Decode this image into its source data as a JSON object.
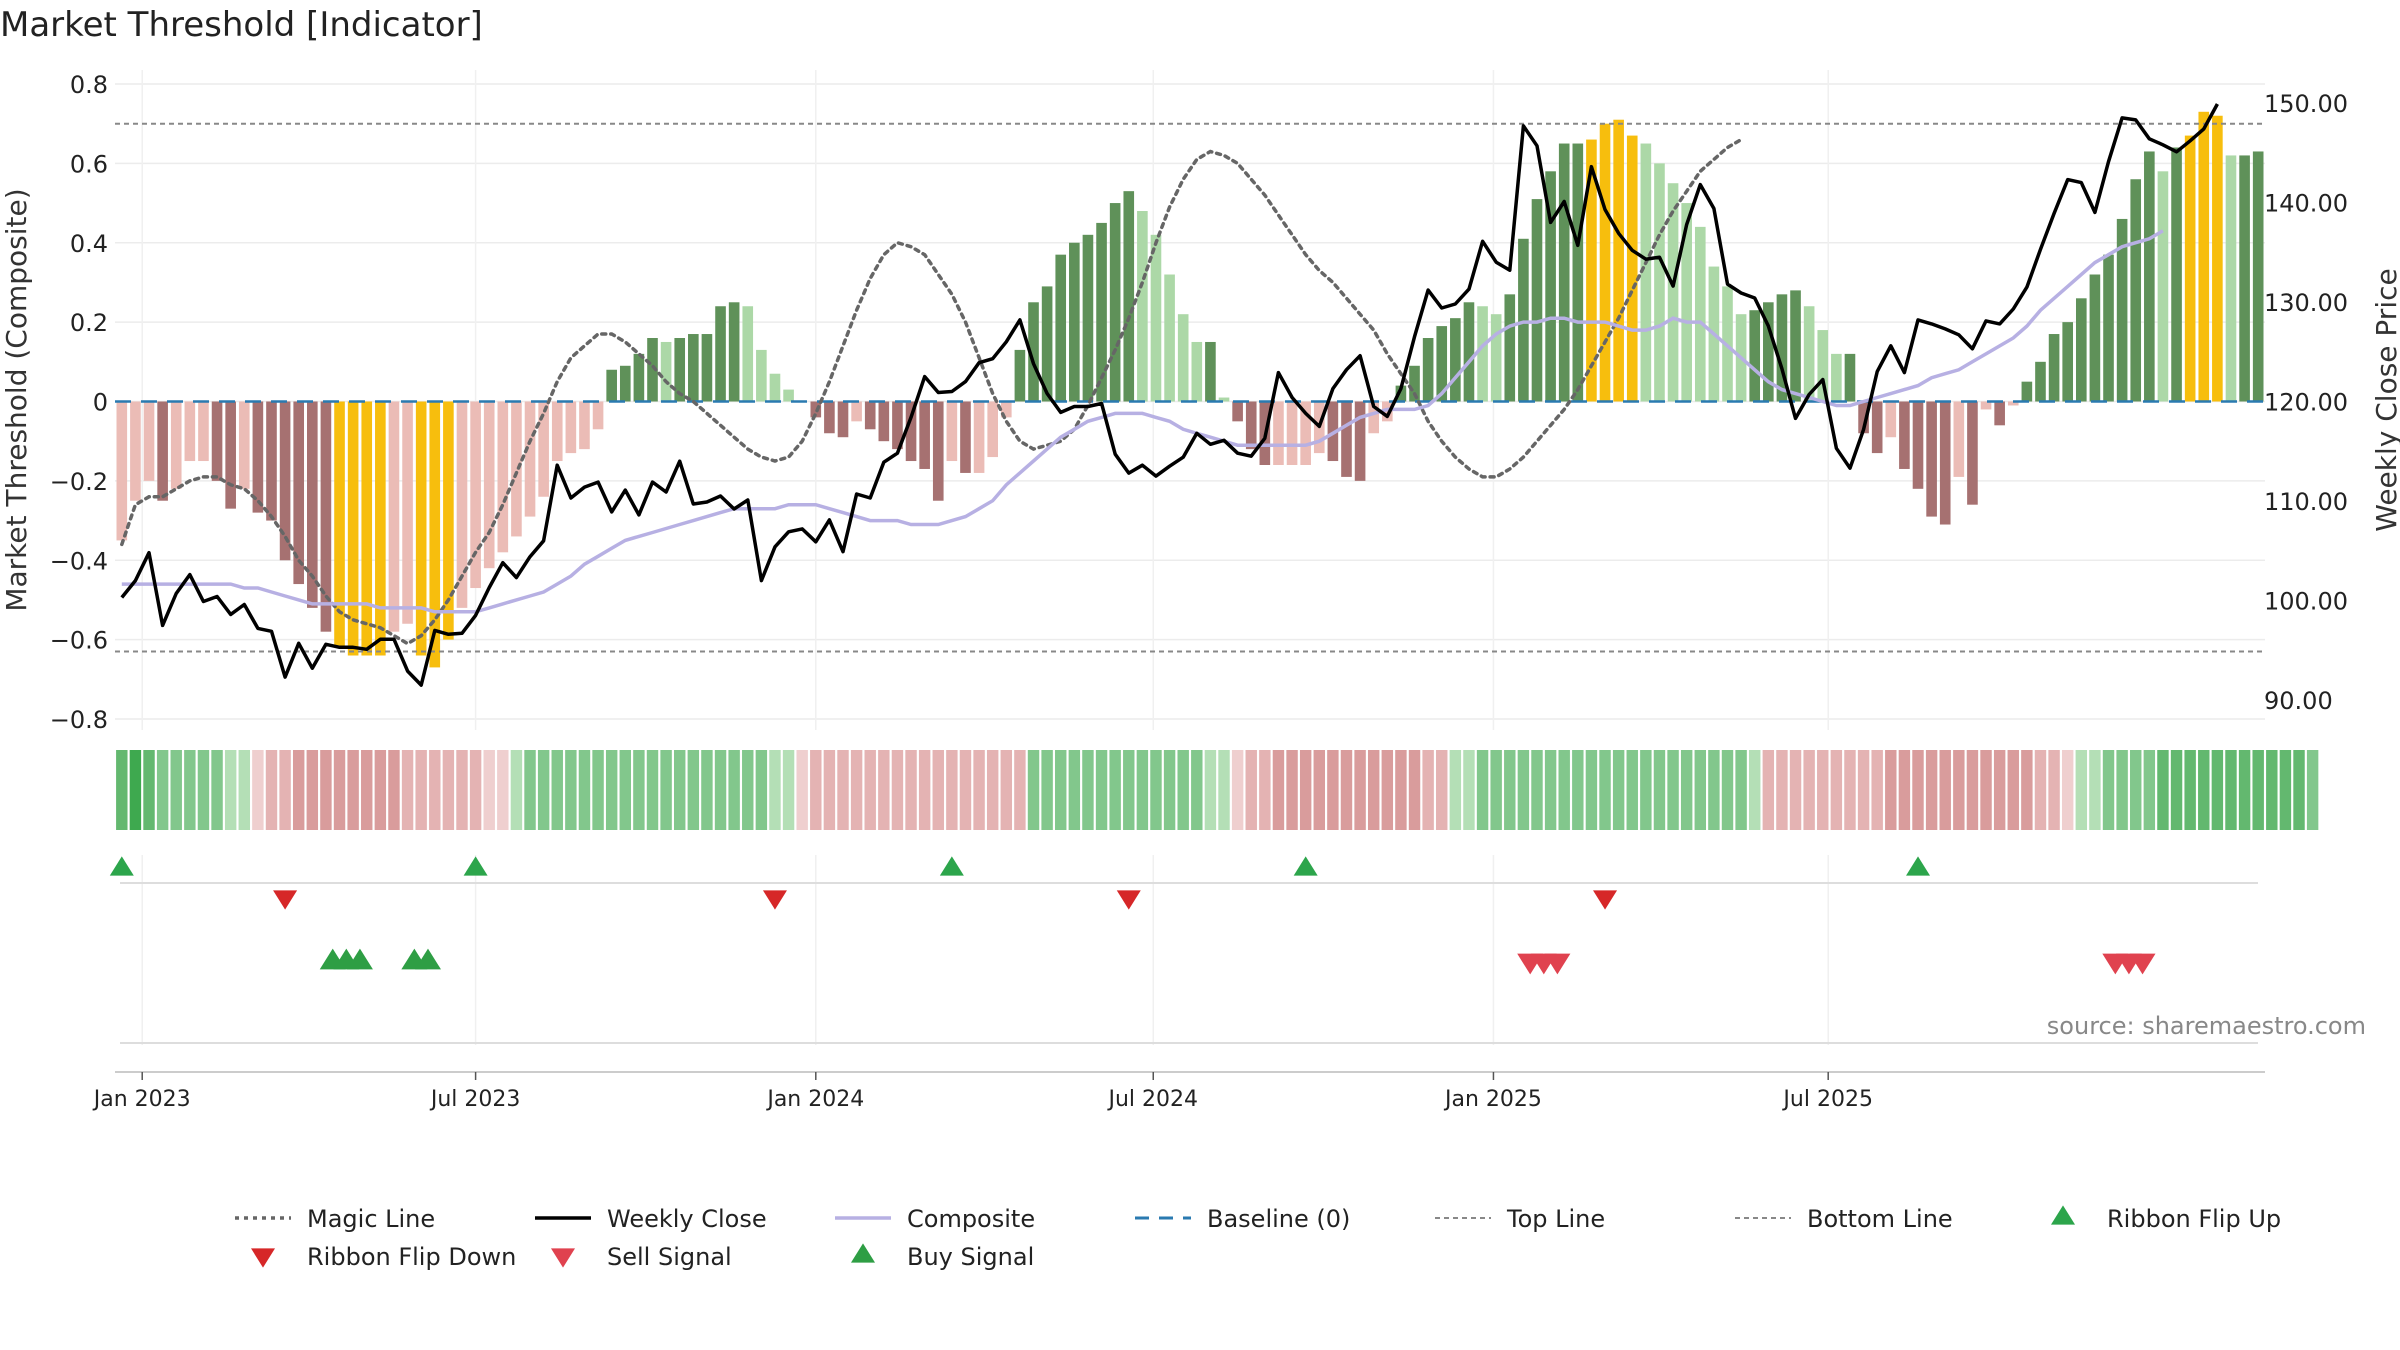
{
  "chart_data": {
    "type": "bar",
    "title": "Market Threshold [Indicator]",
    "source": "source: sharemaestro.com",
    "y_left": {
      "label": "Market Threshold (Composite)",
      "range": [
        -0.8,
        0.8
      ],
      "ticks": [
        0.8,
        0.6,
        0.4,
        0.2,
        0,
        -0.2,
        -0.4,
        -0.6,
        -0.8
      ],
      "tick_labels": [
        "0.8",
        "0.6",
        "0.4",
        "0.2",
        "0",
        "−0.2",
        "−0.4",
        "−0.6",
        "−0.8"
      ]
    },
    "y_right": {
      "label": "Weekly Close Price",
      "range": [
        87,
        151.5
      ],
      "ticks": [
        150,
        140,
        130,
        120,
        110,
        100,
        90
      ],
      "tick_labels": [
        "150.00",
        "140.00",
        "130.00",
        "120.00",
        "110.00",
        "100.00",
        "90.00"
      ]
    },
    "x_axis": {
      "labels": [
        "Jan 2023",
        "Jul 2023",
        "Jan 2024",
        "Jul 2024",
        "Jan 2025",
        "Jul 2025"
      ],
      "label_weeks": [
        1.5,
        26,
        51,
        75.8,
        100.8,
        125.4
      ]
    },
    "top_line": 0.7,
    "bottom_line": -0.63,
    "composite_bars": [
      -0.35,
      -0.25,
      -0.2,
      -0.25,
      -0.22,
      -0.15,
      -0.15,
      -0.2,
      -0.27,
      -0.22,
      -0.28,
      -0.3,
      -0.4,
      -0.46,
      -0.52,
      -0.58,
      -0.62,
      -0.64,
      -0.64,
      -0.64,
      -0.58,
      -0.56,
      -0.64,
      -0.67,
      -0.6,
      -0.52,
      -0.47,
      -0.42,
      -0.38,
      -0.34,
      -0.29,
      -0.24,
      -0.15,
      -0.13,
      -0.12,
      -0.07,
      0.08,
      0.09,
      0.12,
      0.16,
      0.15,
      0.16,
      0.17,
      0.17,
      0.24,
      0.25,
      0.24,
      0.13,
      0.07,
      0.03,
      0,
      -0.04,
      -0.08,
      -0.09,
      -0.05,
      -0.07,
      -0.1,
      -0.12,
      -0.15,
      -0.17,
      -0.25,
      -0.15,
      -0.18,
      -0.18,
      -0.14,
      -0.04,
      0.13,
      0.25,
      0.29,
      0.37,
      0.4,
      0.42,
      0.45,
      0.5,
      0.53,
      0.48,
      0.42,
      0.32,
      0.22,
      0.15,
      0.15,
      0.01,
      -0.05,
      -0.12,
      -0.16,
      -0.16,
      -0.16,
      -0.16,
      -0.13,
      -0.15,
      -0.19,
      -0.2,
      -0.08,
      -0.05,
      0.04,
      0.09,
      0.16,
      0.19,
      0.21,
      0.25,
      0.24,
      0.22,
      0.27,
      0.41,
      0.51,
      0.58,
      0.65,
      0.65,
      0.66,
      0.7,
      0.71,
      0.67,
      0.65,
      0.6,
      0.55,
      0.5,
      0.44,
      0.34,
      0.29,
      0.22,
      0.23,
      0.25,
      0.27,
      0.28,
      0.24,
      0.18,
      0.12,
      0.12,
      -0.08,
      -0.13,
      -0.09,
      -0.17,
      -0.22,
      -0.29,
      -0.31,
      -0.19,
      -0.26,
      -0.02,
      -0.06,
      -0.01,
      0.05,
      0.1,
      0.17,
      0.2,
      0.26,
      0.32,
      0.37,
      0.46,
      0.56,
      0.63,
      0.58,
      0.64,
      0.67,
      0.73,
      0.72,
      0.62,
      0.62,
      0.63
    ],
    "composite_line": [
      -0.46,
      -0.46,
      -0.46,
      -0.46,
      -0.46,
      -0.46,
      -0.46,
      -0.46,
      -0.46,
      -0.47,
      -0.47,
      -0.48,
      -0.49,
      -0.5,
      -0.51,
      -0.51,
      -0.51,
      -0.51,
      -0.51,
      -0.52,
      -0.52,
      -0.52,
      -0.52,
      -0.53,
      -0.53,
      -0.53,
      -0.53,
      -0.52,
      -0.51,
      -0.5,
      -0.49,
      -0.48,
      -0.46,
      -0.44,
      -0.41,
      -0.39,
      -0.37,
      -0.35,
      -0.34,
      -0.33,
      -0.32,
      -0.31,
      -0.3,
      -0.29,
      -0.28,
      -0.27,
      -0.27,
      -0.27,
      -0.27,
      -0.26,
      -0.26,
      -0.26,
      -0.27,
      -0.28,
      -0.29,
      -0.3,
      -0.3,
      -0.3,
      -0.31,
      -0.31,
      -0.31,
      -0.3,
      -0.29,
      -0.27,
      -0.25,
      -0.21,
      -0.18,
      -0.15,
      -0.12,
      -0.09,
      -0.07,
      -0.05,
      -0.04,
      -0.03,
      -0.03,
      -0.03,
      -0.04,
      -0.05,
      -0.07,
      -0.08,
      -0.09,
      -0.1,
      -0.11,
      -0.11,
      -0.11,
      -0.11,
      -0.11,
      -0.11,
      -0.1,
      -0.08,
      -0.06,
      -0.04,
      -0.03,
      -0.02,
      -0.02,
      -0.02,
      -0.01,
      0.02,
      0.06,
      0.1,
      0.14,
      0.17,
      0.19,
      0.2,
      0.2,
      0.21,
      0.21,
      0.2,
      0.2,
      0.2,
      0.19,
      0.18,
      0.18,
      0.19,
      0.21,
      0.2,
      0.2,
      0.17,
      0.14,
      0.11,
      0.08,
      0.05,
      0.03,
      0.02,
      0.01,
      0,
      -0.01,
      -0.01,
      0,
      0.01,
      0.02,
      0.03,
      0.04,
      0.06,
      0.07,
      0.08,
      0.1,
      0.12,
      0.14,
      0.16,
      0.19,
      0.23,
      0.26,
      0.29,
      0.32,
      0.35,
      0.37,
      0.39,
      0.4,
      0.41,
      0.43
    ],
    "magic_line": [
      -0.36,
      -0.26,
      -0.24,
      -0.24,
      -0.22,
      -0.2,
      -0.19,
      -0.19,
      -0.21,
      -0.22,
      -0.25,
      -0.29,
      -0.34,
      -0.4,
      -0.44,
      -0.49,
      -0.53,
      -0.55,
      -0.56,
      -0.57,
      -0.59,
      -0.61,
      -0.59,
      -0.55,
      -0.5,
      -0.44,
      -0.38,
      -0.33,
      -0.26,
      -0.18,
      -0.1,
      -0.03,
      0.05,
      0.11,
      0.14,
      0.17,
      0.17,
      0.15,
      0.12,
      0.09,
      0.05,
      0.02,
      0,
      -0.03,
      -0.06,
      -0.09,
      -0.12,
      -0.14,
      -0.15,
      -0.14,
      -0.1,
      -0.03,
      0.05,
      0.14,
      0.23,
      0.31,
      0.37,
      0.4,
      0.39,
      0.37,
      0.32,
      0.27,
      0.2,
      0.11,
      0.02,
      -0.05,
      -0.1,
      -0.12,
      -0.11,
      -0.1,
      -0.07,
      -0.01,
      0.06,
      0.13,
      0.21,
      0.3,
      0.4,
      0.49,
      0.56,
      0.61,
      0.63,
      0.62,
      0.6,
      0.56,
      0.52,
      0.47,
      0.42,
      0.37,
      0.33,
      0.3,
      0.26,
      0.22,
      0.18,
      0.12,
      0.07,
      0.02,
      -0.05,
      -0.1,
      -0.14,
      -0.17,
      -0.19,
      -0.19,
      -0.17,
      -0.14,
      -0.1,
      -0.06,
      -0.02,
      0.03,
      0.09,
      0.15,
      0.21,
      0.28,
      0.35,
      0.42,
      0.48,
      0.53,
      0.58,
      0.61,
      0.64,
      0.66
    ],
    "weekly_close": [
      100.3,
      102,
      104.8,
      97.5,
      100.7,
      102.6,
      99.9,
      100.4,
      98.6,
      99.6,
      97.2,
      96.9,
      92.3,
      95.7,
      93.2,
      95.6,
      95.3,
      95.3,
      95.1,
      96.1,
      96.1,
      92.9,
      91.5,
      97,
      96.6,
      96.7,
      98.5,
      101.3,
      103.8,
      102.3,
      104.4,
      106,
      113.6,
      110.3,
      111.4,
      111.9,
      108.9,
      111.1,
      108.6,
      111.9,
      110.9,
      114,
      109.7,
      109.9,
      110.5,
      109.2,
      110.1,
      102,
      105.4,
      106.9,
      107.2,
      105.9,
      108.1,
      104.9,
      110.7,
      110.3,
      113.9,
      114.8,
      118.4,
      122.5,
      120.9,
      121,
      122,
      123.9,
      124.3,
      126,
      128.2,
      123.8,
      120.8,
      118.9,
      119.5,
      119.5,
      119.8,
      114.7,
      112.8,
      113.6,
      112.5,
      113.5,
      114.4,
      116.8,
      115.7,
      116.1,
      114.8,
      114.5,
      116.3,
      122.9,
      120.4,
      118.8,
      117.5,
      121.3,
      123.2,
      124.6,
      119.5,
      118.5,
      121.3,
      126.5,
      131.2,
      129.4,
      129.8,
      131.3,
      136.1,
      134,
      133.2,
      147.7,
      145.7,
      138,
      140.1,
      135.7,
      143.6,
      139.3,
      136.9,
      135.2,
      134.3,
      134.5,
      131.6,
      137.8,
      141.8,
      139.4,
      131.8,
      130.9,
      130.4,
      127.6,
      123.3,
      118.3,
      120.7,
      122.2,
      115.3,
      113.3,
      117.2,
      123,
      125.6,
      122.9,
      128.2,
      127.8,
      127.3,
      126.7,
      125.3,
      128.1,
      127.8,
      129.3,
      131.5,
      135.3,
      138.9,
      142.3,
      142,
      139,
      144.1,
      148.5,
      148.3,
      146.4,
      145.8,
      145.1,
      146.2,
      147.4,
      149.9
    ],
    "ribbon": [
      "g2",
      "g3",
      "g2",
      "g1",
      "g1",
      "g1",
      "g1",
      "g1",
      "g0",
      "g0",
      "r0",
      "r1",
      "r1",
      "r2",
      "r2",
      "r2",
      "r2",
      "r2",
      "r2",
      "r2",
      "r2",
      "r1",
      "r1",
      "r1",
      "r1",
      "r1",
      "r1",
      "r0",
      "r0",
      "g0",
      "g1",
      "g1",
      "g1",
      "g1",
      "g1",
      "g1",
      "g1",
      "g1",
      "g1",
      "g1",
      "g1",
      "g1",
      "g1",
      "g1",
      "g1",
      "g1",
      "g1",
      "g1",
      "g0",
      "g0",
      "r0",
      "r1",
      "r1",
      "r1",
      "r1",
      "r1",
      "r1",
      "r1",
      "r1",
      "r1",
      "r1",
      "r1",
      "r1",
      "r1",
      "r1",
      "r1",
      "r1",
      "g1",
      "g1",
      "g1",
      "g1",
      "g1",
      "g1",
      "g1",
      "g1",
      "g1",
      "g1",
      "g1",
      "g1",
      "g1",
      "g0",
      "g0",
      "r0",
      "r1",
      "r1",
      "r2",
      "r2",
      "r2",
      "r2",
      "r2",
      "r2",
      "r2",
      "r2",
      "r2",
      "r2",
      "r2",
      "r1",
      "r1",
      "g0",
      "g0",
      "g1",
      "g1",
      "g1",
      "g1",
      "g1",
      "g1",
      "g1",
      "g1",
      "g1",
      "g1",
      "g1",
      "g1",
      "g1",
      "g1",
      "g1",
      "g1",
      "g1",
      "g1",
      "g1",
      "g1",
      "g0",
      "r1",
      "r1",
      "r1",
      "r1",
      "r1",
      "r1",
      "r1",
      "r1",
      "r1",
      "r2",
      "r2",
      "r2",
      "r2",
      "r2",
      "r2",
      "r2",
      "r2",
      "r2",
      "r2",
      "r2",
      "r1",
      "r1",
      "r0",
      "g0",
      "g0",
      "g1",
      "g1",
      "g1",
      "g1",
      "g2",
      "g2",
      "g2",
      "g2",
      "g2",
      "g2",
      "g2",
      "g2",
      "g2",
      "g2",
      "g2",
      "g1"
    ],
    "ribbon_flip_up_weeks": [
      0,
      26,
      61,
      87,
      132
    ],
    "ribbon_flip_down_weeks": [
      12,
      48,
      74,
      109
    ],
    "buy_signal_weeks": [
      15.5,
      16.5,
      17.5,
      21.5,
      22.5
    ],
    "sell_signal_weeks": [
      103.5,
      104.5,
      105.5,
      146.5,
      147.5,
      148.5
    ],
    "legend": [
      {
        "label": "Magic Line",
        "symbol": "dotted",
        "color": "#666666"
      },
      {
        "label": "Weekly Close",
        "symbol": "line",
        "color": "#000000"
      },
      {
        "label": "Composite",
        "symbol": "line",
        "color": "#b7b0e3"
      },
      {
        "label": "Baseline (0)",
        "symbol": "dashed",
        "color": "#2a7ab0"
      },
      {
        "label": "Top Line",
        "symbol": "dashed-thin",
        "color": "#888888"
      },
      {
        "label": "Bottom Line",
        "symbol": "dashed-thin",
        "color": "#888888"
      },
      {
        "label": "Ribbon Flip Up",
        "symbol": "tri-up",
        "color": "#2ca54b"
      },
      {
        "label": "Ribbon Flip Down",
        "symbol": "tri-down",
        "color": "#d62728"
      },
      {
        "label": "Sell Signal",
        "symbol": "tri-down",
        "color": "#e0424f"
      },
      {
        "label": "Buy Signal",
        "symbol": "tri-up",
        "color": "#2e9e44"
      }
    ],
    "colors": {
      "bar_neg_strong": "#a67171",
      "bar_neg_light": "#ebbcb6",
      "bar_pos_strong": "#5f9159",
      "bar_pos_light": "#acd8a7",
      "bar_extreme": "#f7be0d",
      "ribbon_g3": "#3ea94f",
      "ribbon_g2": "#63b86f",
      "ribbon_g1": "#82c78c",
      "ribbon_g0": "#b4dfb6",
      "ribbon_r0": "#efcfcf",
      "ribbon_r1": "#e4b3b3",
      "ribbon_r2": "#d99c9c"
    }
  }
}
